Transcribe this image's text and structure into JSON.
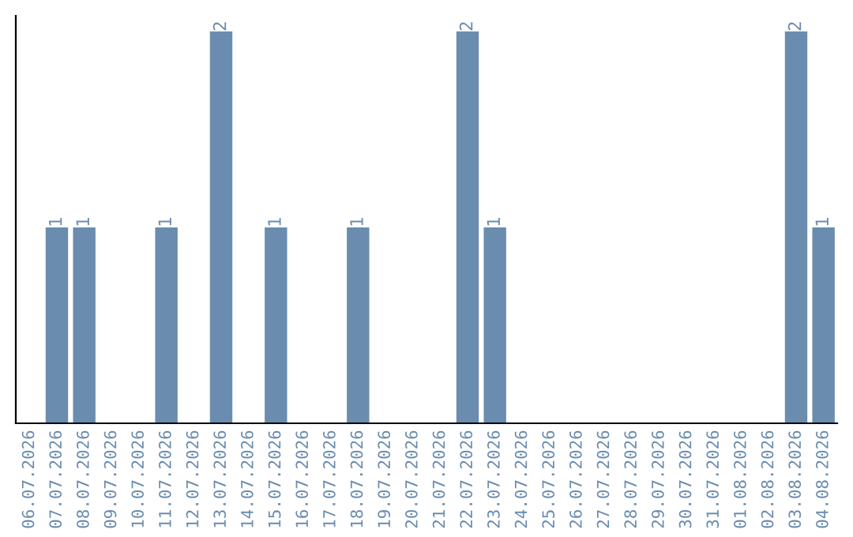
{
  "chart_data": {
    "type": "bar",
    "categories": [
      "06.07.2026",
      "07.07.2026",
      "08.07.2026",
      "09.07.2026",
      "10.07.2026",
      "11.07.2026",
      "12.07.2026",
      "13.07.2026",
      "14.07.2026",
      "15.07.2026",
      "16.07.2026",
      "17.07.2026",
      "18.07.2026",
      "19.07.2026",
      "20.07.2026",
      "21.07.2026",
      "22.07.2026",
      "23.07.2026",
      "24.07.2026",
      "25.07.2026",
      "26.07.2026",
      "27.07.2026",
      "28.07.2026",
      "29.07.2026",
      "30.07.2026",
      "31.07.2026",
      "01.08.2026",
      "02.08.2026",
      "03.08.2026",
      "04.08.2026"
    ],
    "values": [
      0,
      1,
      1,
      0,
      0,
      1,
      0,
      2,
      0,
      1,
      0,
      0,
      1,
      0,
      0,
      0,
      2,
      1,
      0,
      0,
      0,
      0,
      0,
      0,
      0,
      0,
      0,
      0,
      2,
      1
    ],
    "value_labels": [
      null,
      "1",
      "1",
      null,
      null,
      "1",
      null,
      "2",
      null,
      "1",
      null,
      null,
      "1",
      null,
      null,
      null,
      "2",
      "1",
      null,
      null,
      null,
      null,
      null,
      null,
      null,
      null,
      null,
      null,
      "2",
      "1"
    ],
    "color": "#6a8caf",
    "grid": false,
    "legend": false
  }
}
